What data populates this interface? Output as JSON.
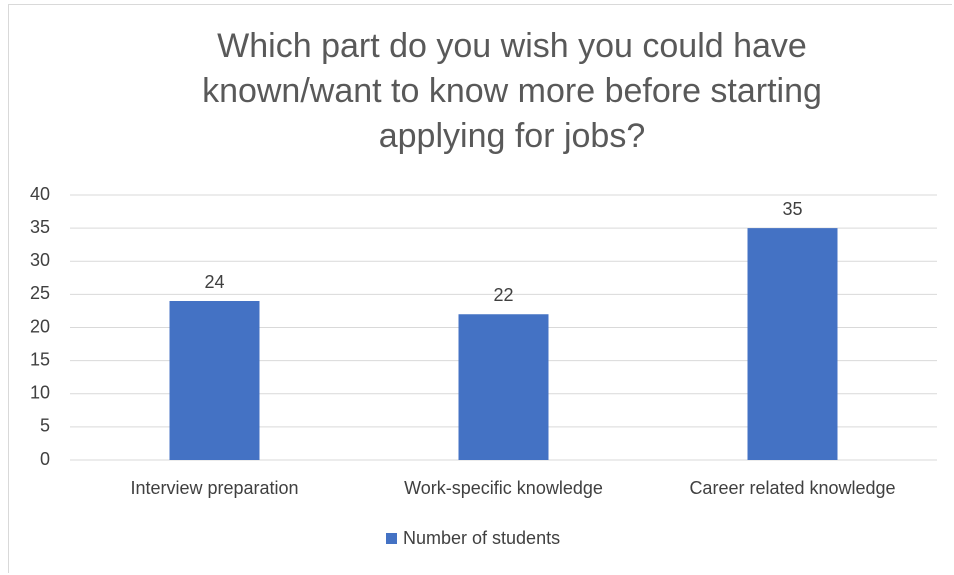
{
  "chart_data": {
    "type": "bar",
    "title": "Which part do you wish you could have known/want to know more before starting applying for jobs?",
    "categories": [
      "Interview preparation",
      "Work-specific knowledge",
      "Career related knowledge"
    ],
    "series": [
      {
        "name": "Number of students",
        "color": "#4472c4",
        "values": [
          24,
          22,
          35
        ]
      }
    ],
    "ylim": [
      0,
      40
    ],
    "yticks": [
      0,
      5,
      10,
      15,
      20,
      25,
      30,
      35,
      40
    ],
    "grid": true,
    "legend": "bottom"
  }
}
